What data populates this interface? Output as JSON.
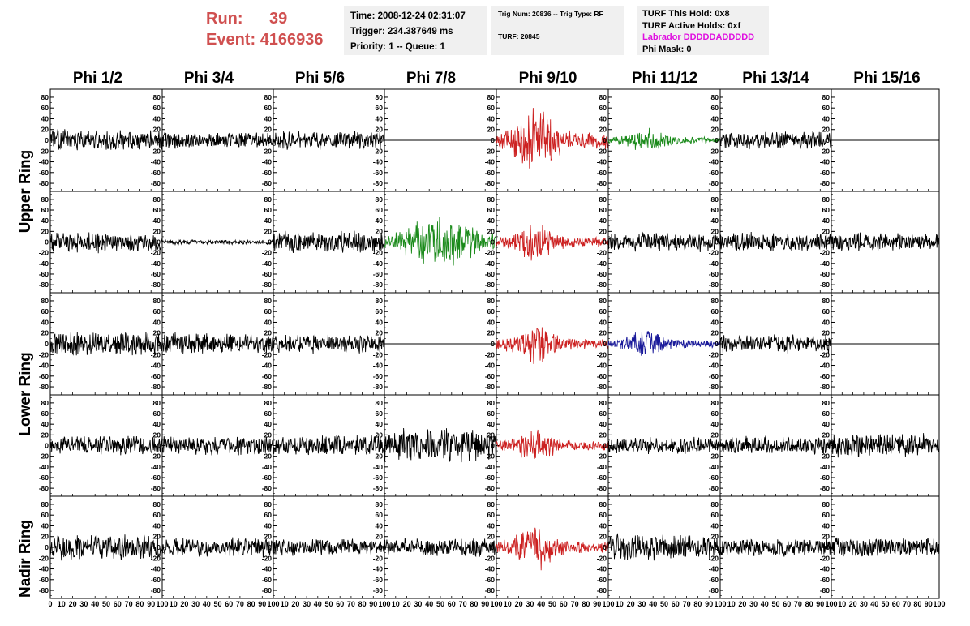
{
  "header": {
    "run_label": "Run:",
    "run_value": "39",
    "event_label": "Event:",
    "event_value": "4166936"
  },
  "info_box1": {
    "time": "Time: 2008-12-24 02:31:07",
    "trigger": "Trigger: 234.387649 ms",
    "priority": "Priority: 1 -- Queue: 1"
  },
  "info_box2": {
    "trig": "Trig Num: 20836 -- Trig Type: RF",
    "turf": "TURF: 20845"
  },
  "info_box3": {
    "this_hold": "TURF This Hold: 0x8",
    "active_holds": "TURF Active Holds: 0xf",
    "labrador": "Labrador DDDDDADDDDD",
    "phi_mask": "Phi Mask: 0"
  },
  "columns": [
    "Phi 1/2",
    "Phi 3/4",
    "Phi 5/6",
    "Phi 7/8",
    "Phi 9/10",
    "Phi 11/12",
    "Phi 13/14",
    "Phi 15/16"
  ],
  "ring_labels": [
    "Upper Ring",
    "Lower Ring",
    "Nadir Ring"
  ],
  "chart_data": {
    "type": "line",
    "x_ticks": [
      "0",
      "10",
      "20",
      "30",
      "40",
      "50",
      "60",
      "70",
      "80",
      "90",
      "100"
    ],
    "y_ticks": [
      "80",
      "60",
      "40",
      "20",
      "0",
      "-20",
      "-40",
      "-60",
      "-80"
    ],
    "xlim": [
      0,
      100
    ],
    "ylim": [
      -95,
      95
    ],
    "colors": {
      "black": "#000000",
      "red": "#cc2020",
      "green": "#1a8a1a",
      "blue": "#1a1a9a"
    },
    "rows": [
      [
        {
          "color": "black",
          "amp": 18,
          "seed": 11
        },
        {
          "color": "black",
          "amp": 14,
          "seed": 12
        },
        {
          "color": "black",
          "amp": 16,
          "seed": 13
        },
        {
          "color": "black",
          "amp": 0,
          "seed": 14
        },
        {
          "color": "red",
          "amp": 60,
          "seed": 15,
          "burst": true
        },
        {
          "color": "green",
          "amp": 22,
          "seed": 16,
          "burst": true
        },
        {
          "color": "black",
          "amp": 16,
          "seed": 17
        },
        {
          "color": "black",
          "amp": 0,
          "seed": 18
        }
      ],
      [
        {
          "color": "black",
          "amp": 18,
          "seed": 21
        },
        {
          "color": "black",
          "amp": 4,
          "seed": 22
        },
        {
          "color": "black",
          "amp": 18,
          "seed": 23
        },
        {
          "color": "green",
          "amp": 45,
          "seed": 24,
          "burst": true,
          "wide": true
        },
        {
          "color": "red",
          "amp": 35,
          "seed": 25,
          "burst": true
        },
        {
          "color": "black",
          "amp": 16,
          "seed": 26
        },
        {
          "color": "black",
          "amp": 16,
          "seed": 27
        },
        {
          "color": "black",
          "amp": 16,
          "seed": 28
        }
      ],
      [
        {
          "color": "black",
          "amp": 20,
          "seed": 31
        },
        {
          "color": "black",
          "amp": 18,
          "seed": 32
        },
        {
          "color": "black",
          "amp": 16,
          "seed": 33
        },
        {
          "color": "black",
          "amp": 0,
          "seed": 34
        },
        {
          "color": "red",
          "amp": 35,
          "seed": 35,
          "burst": true
        },
        {
          "color": "blue",
          "amp": 25,
          "seed": 36,
          "burst": true
        },
        {
          "color": "black",
          "amp": 16,
          "seed": 37
        },
        {
          "color": "black",
          "amp": 0,
          "seed": 38
        }
      ],
      [
        {
          "color": "black",
          "amp": 16,
          "seed": 41
        },
        {
          "color": "black",
          "amp": 16,
          "seed": 42
        },
        {
          "color": "black",
          "amp": 18,
          "seed": 43
        },
        {
          "color": "black",
          "amp": 28,
          "seed": 44
        },
        {
          "color": "red",
          "amp": 30,
          "seed": 45,
          "burst": true
        },
        {
          "color": "black",
          "amp": 14,
          "seed": 46
        },
        {
          "color": "black",
          "amp": 16,
          "seed": 47
        },
        {
          "color": "black",
          "amp": 20,
          "seed": 48
        }
      ],
      [
        {
          "color": "black",
          "amp": 22,
          "seed": 51
        },
        {
          "color": "black",
          "amp": 16,
          "seed": 52
        },
        {
          "color": "black",
          "amp": 14,
          "seed": 53
        },
        {
          "color": "black",
          "amp": 16,
          "seed": 54
        },
        {
          "color": "red",
          "amp": 40,
          "seed": 55,
          "burst": true
        },
        {
          "color": "black",
          "amp": 22,
          "seed": 56
        },
        {
          "color": "black",
          "amp": 16,
          "seed": 57
        },
        {
          "color": "black",
          "amp": 16,
          "seed": 58
        }
      ]
    ]
  }
}
